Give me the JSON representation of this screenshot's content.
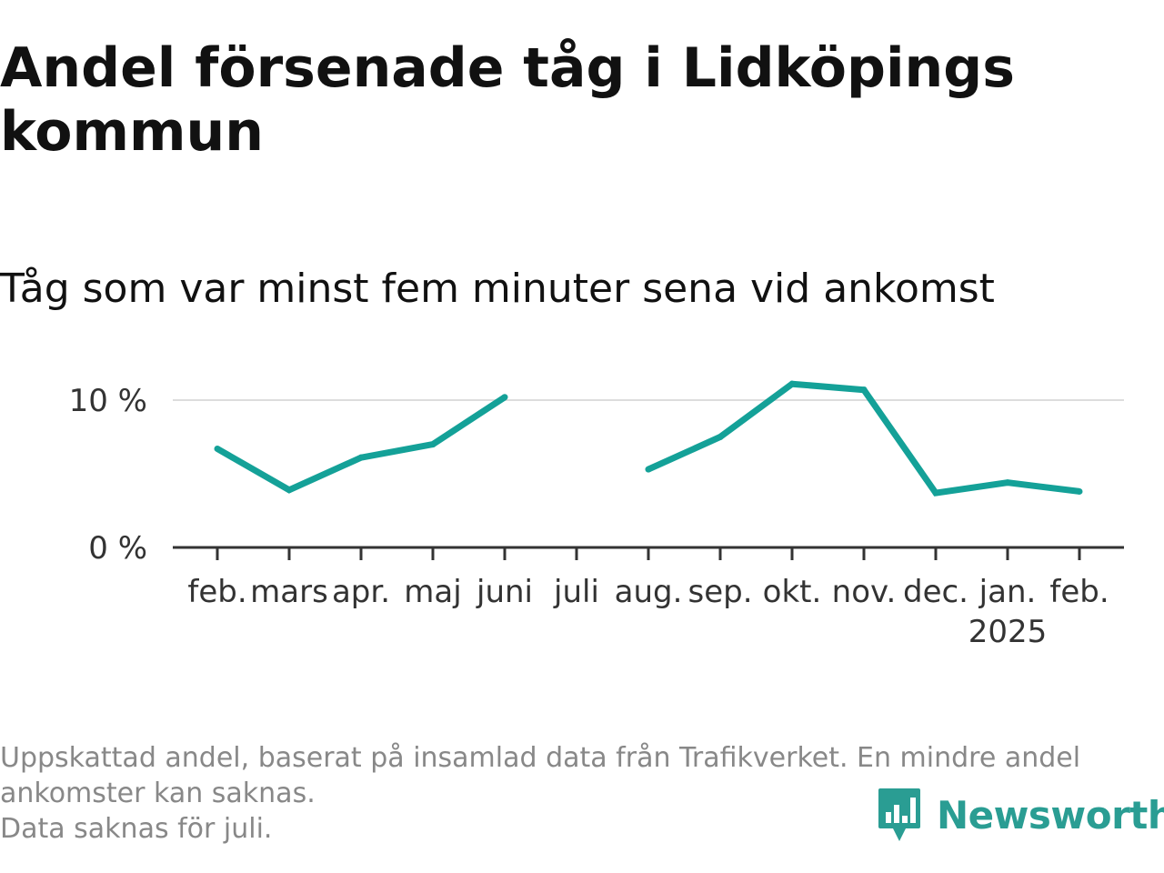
{
  "title": "Andel försenade tåg i Lidköpings kommun",
  "subtitle": "Tåg som var minst fem minuter sena vid ankomst",
  "footnote": {
    "line1": "Uppskattad andel, baserat på insamlad data från Trafikverket. En mindre andel ankomster kan saknas.",
    "line2": "Data saknas för juli."
  },
  "brand": {
    "name": "Newsworthy",
    "icon": "newsworthy-logo-icon",
    "color": "#2a9d93"
  },
  "colors": {
    "line": "#14a198",
    "grid": "#dddddd",
    "axis": "#333333"
  },
  "chart_data": {
    "type": "line",
    "categories": [
      "feb.",
      "mars",
      "apr.",
      "maj",
      "juni",
      "juli",
      "aug.",
      "sep.",
      "okt.",
      "nov.",
      "dec.",
      "jan.",
      "feb."
    ],
    "year_labels": [
      "",
      "",
      "",
      "",
      "",
      "",
      "",
      "",
      "",
      "",
      "",
      "2025",
      ""
    ],
    "series": [
      {
        "values": [
          6.7,
          3.9,
          6.1,
          7.0,
          10.2,
          null,
          5.3,
          7.5,
          11.1,
          10.7,
          3.7,
          4.4,
          3.8
        ]
      }
    ],
    "y_unit": "%",
    "yticks": [
      0,
      10
    ],
    "ytick_labels": [
      "0 %",
      "10 %"
    ],
    "ylim": [
      0,
      11.5
    ],
    "grid": true,
    "legend": "none"
  }
}
